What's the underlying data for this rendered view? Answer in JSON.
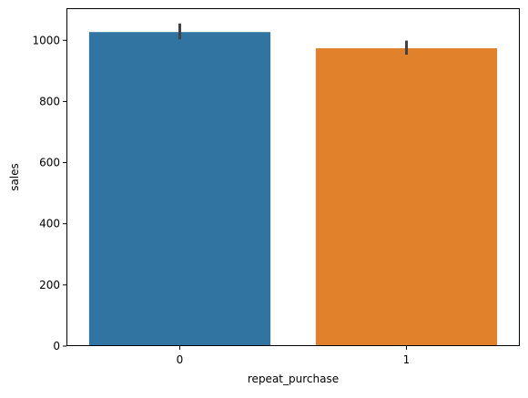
{
  "chart_data": {
    "type": "bar",
    "title": "",
    "xlabel": "repeat_purchase",
    "ylabel": "sales",
    "categories": [
      "0",
      "1"
    ],
    "values": [
      1027,
      974
    ],
    "error_bars": [
      {
        "low": 1003,
        "high": 1055
      },
      {
        "low": 953,
        "high": 999
      }
    ],
    "colors": [
      "#3274a1",
      "#e1812c"
    ],
    "error_color": "#424242",
    "ylim": [
      0,
      1105
    ],
    "yticks": [
      0,
      200,
      400,
      600,
      800,
      1000
    ],
    "grid": false,
    "legend": "none"
  }
}
